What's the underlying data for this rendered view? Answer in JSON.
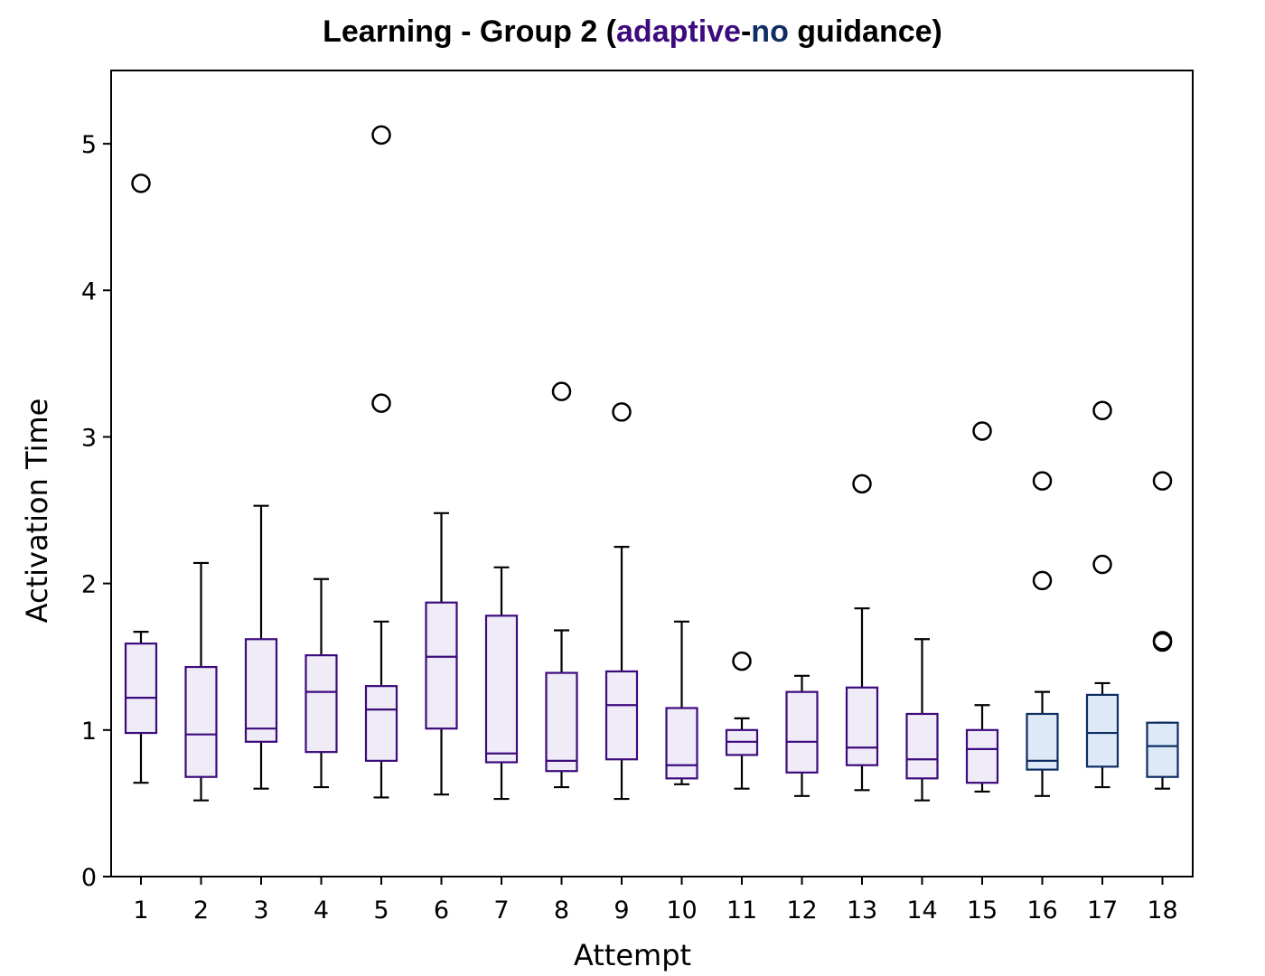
{
  "chart_data": {
    "type": "box",
    "title": {
      "prefix": "Learning - Group 2 (",
      "part1": "adaptive",
      "separator": "-",
      "part2": "no",
      "suffix": " guidance)"
    },
    "xlabel": "Attempt",
    "ylabel": "Activation Time",
    "ylim": [
      0,
      5.5
    ],
    "yticks": [
      0,
      1,
      2,
      3,
      4,
      5
    ],
    "colors": {
      "adaptive_edge": "#3d0a7d",
      "adaptive_fill": "#efecf7",
      "no_edge": "#0d2d63",
      "no_fill": "#dde9f6",
      "whisker": "#000000",
      "title_adaptive": "#3d0a7d",
      "title_no": "#0d2d63"
    },
    "categories": [
      "1",
      "2",
      "3",
      "4",
      "5",
      "6",
      "7",
      "8",
      "9",
      "10",
      "11",
      "12",
      "13",
      "14",
      "15",
      "16",
      "17",
      "18"
    ],
    "boxes": [
      {
        "label": "1",
        "group": "adaptive",
        "whislo": 0.64,
        "q1": 0.98,
        "med": 1.22,
        "q3": 1.59,
        "whishi": 1.67,
        "fliers": [
          4.73
        ]
      },
      {
        "label": "2",
        "group": "adaptive",
        "whislo": 0.52,
        "q1": 0.68,
        "med": 0.97,
        "q3": 1.43,
        "whishi": 2.14,
        "fliers": []
      },
      {
        "label": "3",
        "group": "adaptive",
        "whislo": 0.6,
        "q1": 0.92,
        "med": 1.01,
        "q3": 1.62,
        "whishi": 2.53,
        "fliers": []
      },
      {
        "label": "4",
        "group": "adaptive",
        "whislo": 0.61,
        "q1": 0.85,
        "med": 1.26,
        "q3": 1.51,
        "whishi": 2.03,
        "fliers": []
      },
      {
        "label": "5",
        "group": "adaptive",
        "whislo": 0.54,
        "q1": 0.79,
        "med": 1.14,
        "q3": 1.3,
        "whishi": 1.74,
        "fliers": [
          3.23,
          5.06
        ]
      },
      {
        "label": "6",
        "group": "adaptive",
        "whislo": 0.56,
        "q1": 1.01,
        "med": 1.5,
        "q3": 1.87,
        "whishi": 2.48,
        "fliers": []
      },
      {
        "label": "7",
        "group": "adaptive",
        "whislo": 0.53,
        "q1": 0.78,
        "med": 0.84,
        "q3": 1.78,
        "whishi": 2.11,
        "fliers": []
      },
      {
        "label": "8",
        "group": "adaptive",
        "whislo": 0.61,
        "q1": 0.72,
        "med": 0.79,
        "q3": 1.39,
        "whishi": 1.68,
        "fliers": [
          3.31
        ]
      },
      {
        "label": "9",
        "group": "adaptive",
        "whislo": 0.53,
        "q1": 0.8,
        "med": 1.17,
        "q3": 1.4,
        "whishi": 2.25,
        "fliers": [
          3.17
        ]
      },
      {
        "label": "10",
        "group": "adaptive",
        "whislo": 0.63,
        "q1": 0.67,
        "med": 0.76,
        "q3": 1.15,
        "whishi": 1.74,
        "fliers": []
      },
      {
        "label": "11",
        "group": "adaptive",
        "whislo": 0.6,
        "q1": 0.83,
        "med": 0.92,
        "q3": 1.0,
        "whishi": 1.08,
        "fliers": [
          1.47
        ]
      },
      {
        "label": "12",
        "group": "adaptive",
        "whislo": 0.55,
        "q1": 0.71,
        "med": 0.92,
        "q3": 1.26,
        "whishi": 1.37,
        "fliers": []
      },
      {
        "label": "13",
        "group": "adaptive",
        "whislo": 0.59,
        "q1": 0.76,
        "med": 0.88,
        "q3": 1.29,
        "whishi": 1.83,
        "fliers": [
          2.68
        ]
      },
      {
        "label": "14",
        "group": "adaptive",
        "whislo": 0.52,
        "q1": 0.67,
        "med": 0.8,
        "q3": 1.11,
        "whishi": 1.62,
        "fliers": []
      },
      {
        "label": "15",
        "group": "adaptive",
        "whislo": 0.58,
        "q1": 0.64,
        "med": 0.87,
        "q3": 1.0,
        "whishi": 1.17,
        "fliers": [
          3.04
        ]
      },
      {
        "label": "16",
        "group": "no",
        "whislo": 0.55,
        "q1": 0.73,
        "med": 0.79,
        "q3": 1.11,
        "whishi": 1.26,
        "fliers": [
          2.02,
          2.7
        ]
      },
      {
        "label": "17",
        "group": "no",
        "whislo": 0.61,
        "q1": 0.75,
        "med": 0.98,
        "q3": 1.24,
        "whishi": 1.32,
        "fliers": [
          2.13,
          3.18
        ]
      },
      {
        "label": "18",
        "group": "no",
        "whislo": 0.6,
        "q1": 0.68,
        "med": 0.89,
        "q3": 1.05,
        "whishi": 1.05,
        "fliers": [
          1.6,
          1.61,
          2.7
        ]
      }
    ]
  }
}
